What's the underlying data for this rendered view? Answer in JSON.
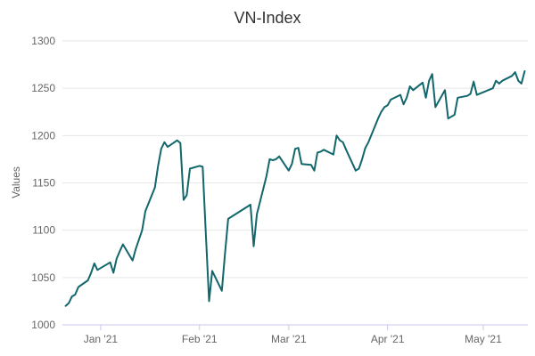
{
  "colors": {
    "background": "#ffffff",
    "line": "#11676b",
    "grid": "#e6e6e6",
    "axis": "#c9c6e8",
    "text": "#444444",
    "tick_text": "#666666"
  },
  "chart_data": {
    "type": "line",
    "title": "VN-Index",
    "xlabel": "",
    "ylabel": "Values",
    "ylim": [
      1000,
      1300
    ],
    "xlim": [
      "2020-12-20",
      "2021-05-15"
    ],
    "grid": true,
    "legend": "none",
    "yticks": [
      1000,
      1050,
      1100,
      1150,
      1200,
      1250,
      1300
    ],
    "xticks": [
      {
        "date": "2021-01-01",
        "label": "Jan '21"
      },
      {
        "date": "2021-02-01",
        "label": "Feb '21"
      },
      {
        "date": "2021-03-01",
        "label": "Mar '21"
      },
      {
        "date": "2021-04-01",
        "label": "Apr '21"
      },
      {
        "date": "2021-05-01",
        "label": "May '21"
      }
    ],
    "series": [
      {
        "x": [
          "2020-12-21",
          "2020-12-22",
          "2020-12-23",
          "2020-12-24",
          "2020-12-25",
          "2020-12-28",
          "2020-12-29",
          "2020-12-30",
          "2020-12-31",
          "2021-01-04",
          "2021-01-05",
          "2021-01-06",
          "2021-01-07",
          "2021-01-08",
          "2021-01-11",
          "2021-01-12",
          "2021-01-13",
          "2021-01-14",
          "2021-01-15",
          "2021-01-18",
          "2021-01-19",
          "2021-01-20",
          "2021-01-21",
          "2021-01-22",
          "2021-01-25",
          "2021-01-26",
          "2021-01-27",
          "2021-01-28",
          "2021-01-29",
          "2021-02-01",
          "2021-02-02",
          "2021-02-03",
          "2021-02-04",
          "2021-02-05",
          "2021-02-08",
          "2021-02-09",
          "2021-02-10",
          "2021-02-17",
          "2021-02-18",
          "2021-02-19",
          "2021-02-22",
          "2021-02-23",
          "2021-02-24",
          "2021-02-25",
          "2021-02-26",
          "2021-03-01",
          "2021-03-02",
          "2021-03-03",
          "2021-03-04",
          "2021-03-05",
          "2021-03-08",
          "2021-03-09",
          "2021-03-10",
          "2021-03-11",
          "2021-03-12",
          "2021-03-15",
          "2021-03-16",
          "2021-03-17",
          "2021-03-18",
          "2021-03-19",
          "2021-03-22",
          "2021-03-23",
          "2021-03-24",
          "2021-03-25",
          "2021-03-26",
          "2021-03-29",
          "2021-03-30",
          "2021-03-31",
          "2021-04-01",
          "2021-04-02",
          "2021-04-05",
          "2021-04-06",
          "2021-04-07",
          "2021-04-08",
          "2021-04-09",
          "2021-04-12",
          "2021-04-13",
          "2021-04-14",
          "2021-04-15",
          "2021-04-16",
          "2021-04-19",
          "2021-04-20",
          "2021-04-22",
          "2021-04-23",
          "2021-04-26",
          "2021-04-27",
          "2021-04-28",
          "2021-04-29",
          "2021-05-04",
          "2021-05-05",
          "2021-05-06",
          "2021-05-07",
          "2021-05-10",
          "2021-05-11",
          "2021-05-12",
          "2021-05-13",
          "2021-05-14"
        ],
        "values": [
          1020,
          1023,
          1030,
          1032,
          1040,
          1047,
          1055,
          1065,
          1058,
          1066,
          1055,
          1070,
          1078,
          1085,
          1068,
          1080,
          1090,
          1100,
          1120,
          1145,
          1168,
          1186,
          1193,
          1188,
          1195,
          1192,
          1132,
          1137,
          1165,
          1168,
          1167,
          1095,
          1025,
          1057,
          1036,
          1075,
          1112,
          1127,
          1083,
          1117,
          1157,
          1175,
          1174,
          1175,
          1178,
          1163,
          1170,
          1186,
          1187,
          1170,
          1169,
          1163,
          1182,
          1183,
          1185,
          1180,
          1200,
          1195,
          1193,
          1185,
          1163,
          1165,
          1175,
          1187,
          1193,
          1218,
          1225,
          1230,
          1232,
          1238,
          1243,
          1233,
          1240,
          1252,
          1248,
          1256,
          1240,
          1258,
          1265,
          1230,
          1248,
          1218,
          1222,
          1240,
          1242,
          1244,
          1257,
          1243,
          1250,
          1258,
          1255,
          1258,
          1263,
          1267,
          1258,
          1255,
          1268
        ]
      }
    ]
  }
}
